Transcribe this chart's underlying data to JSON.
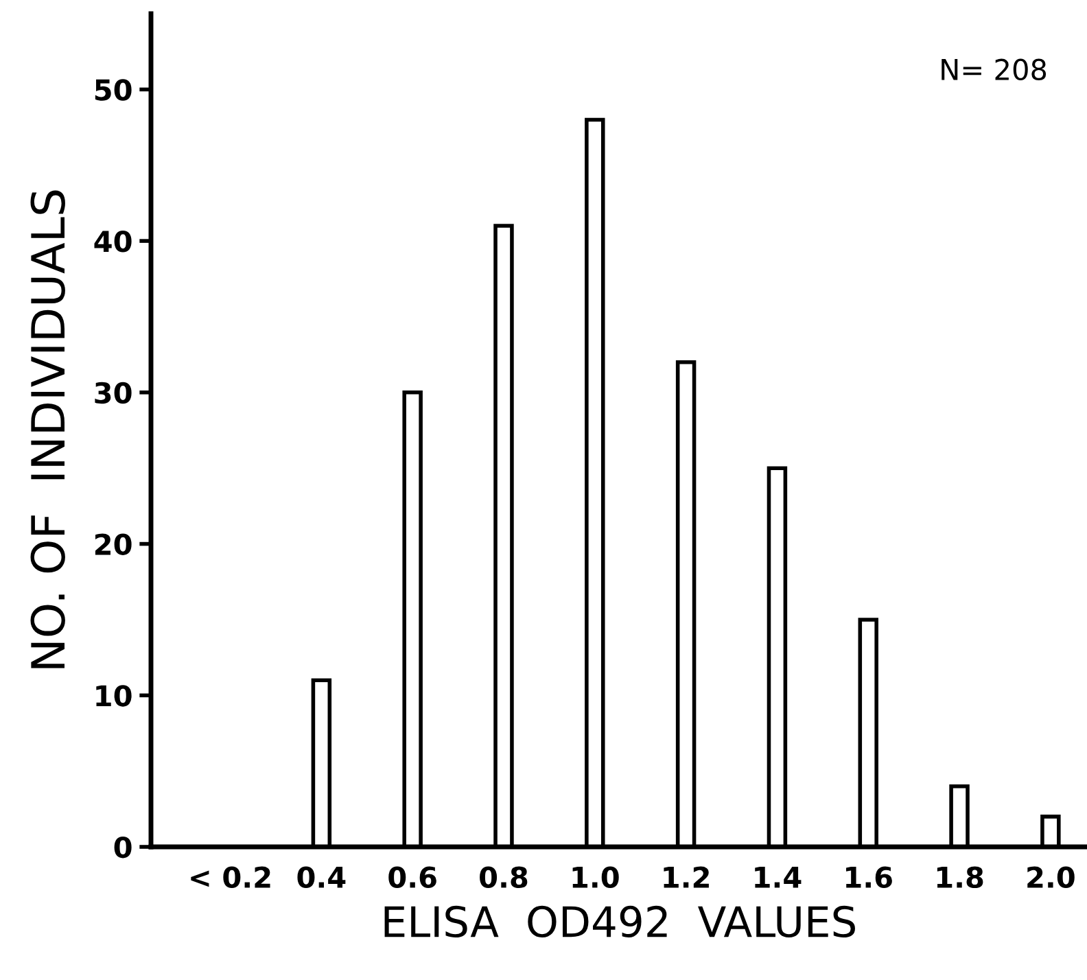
{
  "chart_data": {
    "type": "bar",
    "xlabel": "ELISA  OD492  VALUES",
    "ylabel": "NO. OF  INDIVIDUALS",
    "categories": [
      "< 0.2",
      "0.4",
      "0.6",
      "0.8",
      "1.0",
      "1.2",
      "1.4",
      "1.6",
      "1.8",
      "2.0"
    ],
    "values": [
      0,
      11,
      30,
      41,
      48,
      32,
      25,
      15,
      4,
      2
    ],
    "color": "#ffffff",
    "ylim": [
      0,
      55
    ],
    "yticks": [
      0,
      10,
      20,
      30,
      40,
      50
    ],
    "grid": false,
    "annotations": [
      "N= 208"
    ]
  }
}
